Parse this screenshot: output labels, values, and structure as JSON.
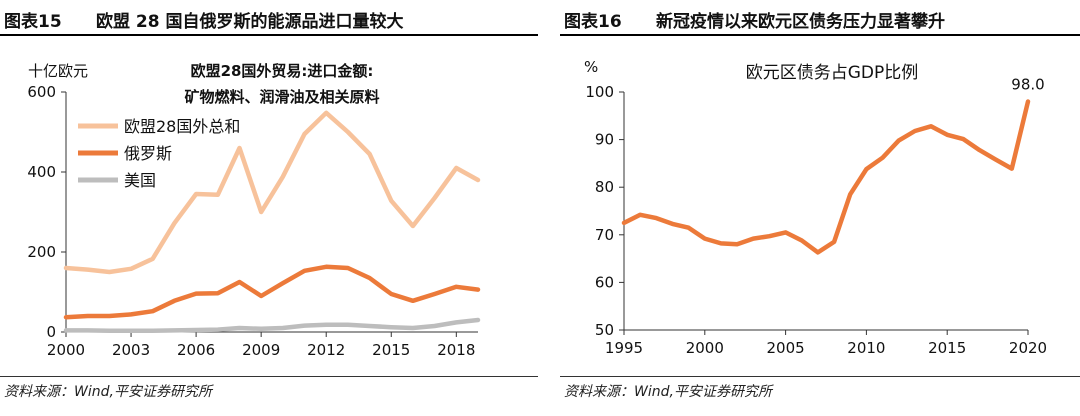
{
  "left": {
    "figure_label": "图表15",
    "title": "欧盟 28 国自俄罗斯的能源品进口量较大",
    "source": "资料来源：Wind,平安证券研究所",
    "chart_data": {
      "type": "line",
      "title": "欧盟28国外贸易:进口金额:",
      "subtitle": "矿物燃料、润滑油及相关原料",
      "ylabel": "十亿欧元",
      "ylim": [
        0,
        600
      ],
      "yticks": [
        0,
        200,
        400,
        600
      ],
      "xlim": [
        2000,
        2019
      ],
      "xticks": [
        2000,
        2003,
        2006,
        2009,
        2012,
        2015,
        2018
      ],
      "x": [
        2000,
        2001,
        2002,
        2003,
        2004,
        2005,
        2006,
        2007,
        2008,
        2009,
        2010,
        2011,
        2012,
        2013,
        2014,
        2015,
        2016,
        2017,
        2018,
        2019
      ],
      "series": [
        {
          "name": "欧盟28国外总和",
          "color": "#f7c29b",
          "values": [
            160,
            156,
            150,
            158,
            183,
            272,
            345,
            343,
            460,
            300,
            388,
            495,
            548,
            500,
            445,
            328,
            265,
            335,
            410,
            380
          ]
        },
        {
          "name": "俄罗斯",
          "color": "#ec7a3a",
          "values": [
            37,
            40,
            40,
            44,
            52,
            78,
            96,
            97,
            125,
            90,
            122,
            153,
            163,
            160,
            135,
            95,
            78,
            95,
            113,
            106
          ]
        },
        {
          "name": "美国",
          "color": "#bdbdbd",
          "values": [
            4,
            4,
            3,
            3,
            3,
            4,
            5,
            6,
            10,
            8,
            10,
            16,
            18,
            18,
            15,
            12,
            10,
            15,
            24,
            30
          ]
        }
      ]
    }
  },
  "right": {
    "figure_label": "图表16",
    "title": "新冠疫情以来欧元区债务压力显著攀升",
    "source": "资料来源：Wind,平安证券研究所",
    "chart_data": {
      "type": "line",
      "title": "欧元区债务占GDP比例",
      "ylabel": "%",
      "ylim": [
        50,
        100
      ],
      "yticks": [
        50,
        60,
        70,
        80,
        90,
        100
      ],
      "xlim": [
        1995,
        2020
      ],
      "xticks": [
        1995,
        2000,
        2005,
        2010,
        2015,
        2020
      ],
      "x": [
        1995,
        1996,
        1997,
        1998,
        1999,
        2000,
        2001,
        2002,
        2003,
        2004,
        2005,
        2006,
        2007,
        2008,
        2009,
        2010,
        2011,
        2012,
        2013,
        2014,
        2015,
        2016,
        2017,
        2018,
        2019,
        2020
      ],
      "series": [
        {
          "name": "欧元区债务占GDP比例",
          "color": "#ec7a3a",
          "values": [
            72.5,
            74.2,
            73.5,
            72.3,
            71.5,
            69.2,
            68.2,
            68.0,
            69.2,
            69.7,
            70.5,
            68.8,
            66.3,
            68.5,
            78.5,
            83.8,
            86.2,
            89.8,
            91.8,
            92.8,
            91.0,
            90.1,
            87.8,
            85.8,
            83.9,
            98.0
          ]
        }
      ],
      "annotation": "98.0"
    }
  }
}
